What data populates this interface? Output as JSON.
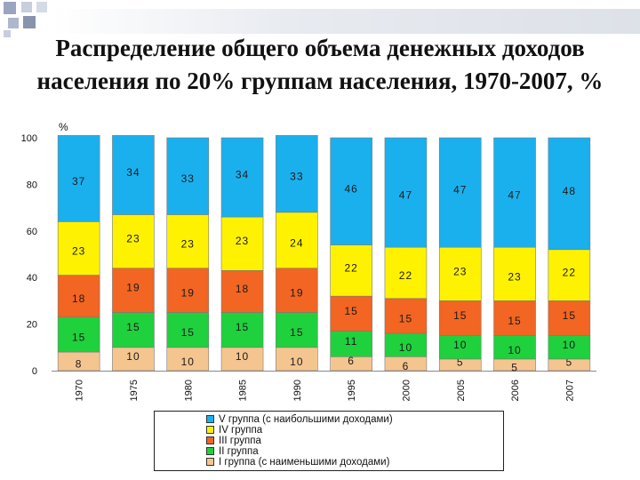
{
  "title": "Распределение общего объема денежных доходов населения по 20% группам населения, 1970-2007, %",
  "chart_data": {
    "type": "bar",
    "stacked": true,
    "categories": [
      "1970",
      "1975",
      "1980",
      "1985",
      "1990",
      "1995",
      "2000",
      "2005",
      "2006",
      "2007"
    ],
    "series": [
      {
        "name": "I группа (с наименьшими доходами)",
        "color": "#f5c58f",
        "values": [
          8,
          10,
          10,
          10,
          10,
          6,
          6,
          5,
          5,
          5
        ]
      },
      {
        "name": "II группа",
        "color": "#1fd13d",
        "values": [
          15,
          15,
          15,
          15,
          15,
          11,
          10,
          10,
          10,
          10
        ]
      },
      {
        "name": "III группа",
        "color": "#f26522",
        "values": [
          18,
          19,
          19,
          18,
          19,
          15,
          15,
          15,
          15,
          15
        ]
      },
      {
        "name": "IV группа",
        "color": "#fff200",
        "values": [
          23,
          23,
          23,
          23,
          24,
          22,
          22,
          23,
          23,
          22
        ]
      },
      {
        "name": "V группа (с наибольшими доходами)",
        "color": "#1ab0ee",
        "values": [
          37,
          34,
          33,
          34,
          33,
          46,
          47,
          47,
          47,
          48
        ]
      }
    ],
    "ylabel": "%",
    "ylim": [
      0,
      100
    ],
    "yticks": [
      "0",
      "20",
      "40",
      "60",
      "80",
      "100"
    ],
    "grid": false,
    "legend": {
      "position": "bottom",
      "order": [
        "V группа (с наибольшими доходами)",
        "IV группа",
        "III группа",
        "II группа",
        "I группа (с наименьшими доходами)"
      ]
    }
  }
}
